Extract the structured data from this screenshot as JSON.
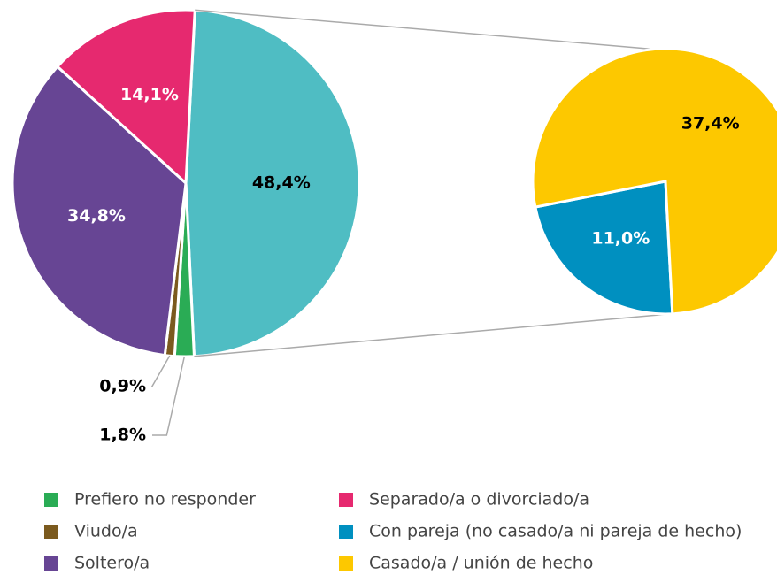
{
  "chart_data": {
    "type": "pie-of-pie",
    "main": {
      "categories": [
        null,
        "Prefiero no responder",
        "Viudo/a",
        "Soltero/a",
        "Separado/a o divorciado/a"
      ],
      "values": [
        48.4,
        1.8,
        0.9,
        34.8,
        14.1
      ],
      "value_labels": [
        "48,4%",
        "1,8%",
        "0,9%",
        "34,8%",
        "14,1%"
      ],
      "colors": [
        "#4fbdc3",
        "#2aac55",
        "#7b5a1e",
        "#674594",
        "#e6296f"
      ],
      "label_colors": [
        "#000000",
        "#000000",
        "#000000",
        "#ffffff",
        "#ffffff"
      ]
    },
    "secondary": {
      "categories": [
        "Con pareja (no casado/a ni pareja de hecho)",
        "Casado/a / unión de hecho"
      ],
      "values": [
        11.0,
        37.4
      ],
      "value_labels": [
        "11,0%",
        "37,4%"
      ],
      "colors": [
        "#0090c0",
        "#fdc800"
      ],
      "label_colors": [
        "#ffffff",
        "#000000"
      ]
    }
  }
}
